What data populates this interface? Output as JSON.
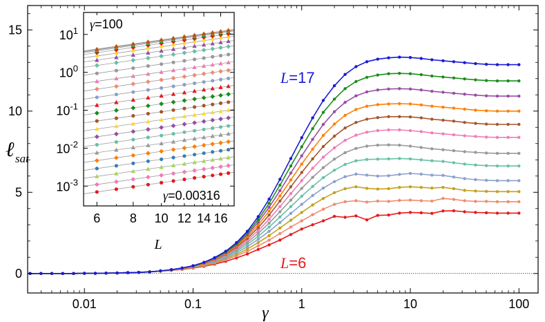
{
  "chart_data": [
    {
      "type": "line",
      "xscale": "log",
      "xlim": [
        0.003,
        150
      ],
      "ylim": [
        -1.2,
        16.5
      ],
      "xlabel": "γ",
      "ylabel": "ℓsat",
      "xticks": [
        {
          "value": 0.01,
          "label": "0.01"
        },
        {
          "value": 0.1,
          "label": "0.1"
        },
        {
          "value": 1,
          "label": "1"
        },
        {
          "value": 10,
          "label": "10"
        },
        {
          "value": 100,
          "label": "100"
        }
      ],
      "yticks": [
        {
          "value": 0,
          "label": "0"
        },
        {
          "value": 5,
          "label": "5"
        },
        {
          "value": 10,
          "label": "10"
        },
        {
          "value": 15,
          "label": "15"
        }
      ],
      "reference_line_y": 0,
      "annotations": [
        {
          "id": "top",
          "prefix": "L",
          "text": "=17",
          "color": "#1a1ad6"
        },
        {
          "id": "bottom",
          "prefix": "L",
          "text": "=6",
          "color": "#e41a1c"
        }
      ],
      "gamma": [
        0.00316,
        0.00398,
        0.00501,
        0.00631,
        0.00794,
        0.01,
        0.0126,
        0.0158,
        0.02,
        0.0251,
        0.0316,
        0.0398,
        0.0501,
        0.0631,
        0.0794,
        0.1,
        0.126,
        0.158,
        0.2,
        0.251,
        0.316,
        0.398,
        0.501,
        0.631,
        0.794,
        1.0,
        1.26,
        1.58,
        2.0,
        2.51,
        3.16,
        3.98,
        5.01,
        6.31,
        7.94,
        10.0,
        12.6,
        15.8,
        20.0,
        25.1,
        31.6,
        39.8,
        50.1,
        63.1,
        79.4,
        100.0
      ],
      "series": [
        {
          "name": "L=6",
          "color": "#e41a1c",
          "values": [
            0,
            0,
            0,
            0,
            0,
            0.01,
            0.01,
            0.02,
            0.03,
            0.05,
            0.07,
            0.1,
            0.14,
            0.19,
            0.25,
            0.33,
            0.44,
            0.58,
            0.75,
            0.96,
            1.2,
            1.48,
            1.76,
            2.06,
            2.4,
            2.74,
            3.0,
            3.24,
            3.52,
            3.46,
            3.55,
            3.3,
            3.58,
            3.6,
            3.72,
            3.76,
            3.74,
            3.7,
            3.85,
            3.86,
            3.8,
            3.76,
            3.74,
            3.72,
            3.72,
            3.72
          ]
        },
        {
          "name": "L=7",
          "color": "#f08c6e",
          "values": [
            0,
            0,
            0,
            0,
            0,
            0.01,
            0.01,
            0.02,
            0.03,
            0.05,
            0.07,
            0.1,
            0.15,
            0.2,
            0.27,
            0.36,
            0.48,
            0.64,
            0.84,
            1.08,
            1.37,
            1.7,
            2.06,
            2.46,
            2.86,
            3.24,
            3.62,
            3.96,
            4.26,
            4.42,
            4.48,
            4.4,
            4.46,
            4.44,
            4.5,
            4.52,
            4.48,
            4.46,
            4.62,
            4.56,
            4.48,
            4.44,
            4.44,
            4.42,
            4.42,
            4.42
          ]
        },
        {
          "name": "L=8",
          "color": "#c4a21c",
          "values": [
            0,
            0,
            0,
            0,
            0,
            0.01,
            0.01,
            0.02,
            0.03,
            0.05,
            0.07,
            0.1,
            0.15,
            0.21,
            0.28,
            0.38,
            0.51,
            0.69,
            0.91,
            1.18,
            1.51,
            1.9,
            2.33,
            2.8,
            3.28,
            3.76,
            4.22,
            4.62,
            4.98,
            5.22,
            5.34,
            5.24,
            5.2,
            5.22,
            5.3,
            5.34,
            5.3,
            5.26,
            5.3,
            5.22,
            5.12,
            5.08,
            5.06,
            5.04,
            5.04,
            5.04
          ]
        },
        {
          "name": "L=9",
          "color": "#8aa0cc",
          "values": [
            0,
            0,
            0,
            0,
            0,
            0.01,
            0.01,
            0.02,
            0.03,
            0.05,
            0.07,
            0.1,
            0.15,
            0.21,
            0.29,
            0.4,
            0.54,
            0.73,
            0.98,
            1.28,
            1.65,
            2.1,
            2.6,
            3.14,
            3.7,
            4.26,
            4.8,
            5.26,
            5.66,
            5.96,
            6.12,
            6.06,
            6.0,
            6.02,
            6.1,
            6.16,
            6.12,
            6.06,
            6.04,
            5.94,
            5.84,
            5.78,
            5.74,
            5.72,
            5.72,
            5.72
          ]
        },
        {
          "name": "L=10",
          "color": "#66c2a5",
          "values": [
            0,
            0,
            0,
            0,
            0,
            0.01,
            0.01,
            0.02,
            0.03,
            0.05,
            0.07,
            0.1,
            0.15,
            0.22,
            0.3,
            0.41,
            0.56,
            0.77,
            1.04,
            1.38,
            1.79,
            2.29,
            2.86,
            3.48,
            4.12,
            4.76,
            5.36,
            5.9,
            6.36,
            6.72,
            6.94,
            7.02,
            7.04,
            7.06,
            7.08,
            7.06,
            7.0,
            6.94,
            6.9,
            6.82,
            6.74,
            6.68,
            6.64,
            6.62,
            6.62,
            6.62
          ]
        },
        {
          "name": "L=11",
          "color": "#999999",
          "values": [
            0,
            0,
            0,
            0,
            0,
            0.01,
            0.01,
            0.02,
            0.03,
            0.05,
            0.07,
            0.1,
            0.15,
            0.22,
            0.31,
            0.42,
            0.58,
            0.8,
            1.09,
            1.46,
            1.92,
            2.47,
            3.1,
            3.8,
            4.52,
            5.24,
            5.92,
            6.52,
            7.04,
            7.44,
            7.7,
            7.84,
            7.9,
            7.92,
            7.9,
            7.84,
            7.76,
            7.68,
            7.62,
            7.56,
            7.5,
            7.46,
            7.42,
            7.4,
            7.4,
            7.4
          ]
        },
        {
          "name": "L=12",
          "color": "#f07cb8",
          "values": [
            0,
            0,
            0,
            0,
            0,
            0.01,
            0.01,
            0.02,
            0.03,
            0.05,
            0.07,
            0.1,
            0.15,
            0.22,
            0.31,
            0.43,
            0.6,
            0.83,
            1.14,
            1.54,
            2.04,
            2.64,
            3.34,
            4.12,
            4.92,
            5.72,
            6.48,
            7.16,
            7.74,
            8.2,
            8.52,
            8.7,
            8.8,
            8.84,
            8.84,
            8.8,
            8.74,
            8.66,
            8.6,
            8.54,
            8.48,
            8.44,
            8.4,
            8.38,
            8.38,
            8.38
          ]
        },
        {
          "name": "L=13",
          "color": "#a6562a",
          "values": [
            0,
            0,
            0,
            0,
            0,
            0.01,
            0.01,
            0.02,
            0.03,
            0.05,
            0.07,
            0.1,
            0.15,
            0.22,
            0.32,
            0.44,
            0.62,
            0.86,
            1.19,
            1.62,
            2.16,
            2.82,
            3.6,
            4.46,
            5.34,
            6.22,
            7.06,
            7.82,
            8.46,
            8.96,
            9.3,
            9.5,
            9.6,
            9.66,
            9.66,
            9.64,
            9.58,
            9.5,
            9.44,
            9.38,
            9.3,
            9.24,
            9.2,
            9.18,
            9.18,
            9.18
          ]
        },
        {
          "name": "L=14",
          "color": "#ff7f00",
          "values": [
            0,
            0,
            0,
            0,
            0,
            0.01,
            0.01,
            0.02,
            0.03,
            0.05,
            0.07,
            0.1,
            0.15,
            0.23,
            0.32,
            0.45,
            0.64,
            0.89,
            1.23,
            1.69,
            2.27,
            2.99,
            3.84,
            4.78,
            5.76,
            6.74,
            7.66,
            8.5,
            9.2,
            9.74,
            10.1,
            10.3,
            10.4,
            10.44,
            10.46,
            10.44,
            10.38,
            10.3,
            10.24,
            10.18,
            10.12,
            10.06,
            10.02,
            10.0,
            10.0,
            10.0
          ]
        },
        {
          "name": "L=15",
          "color": "#984ea3",
          "values": [
            0,
            0,
            0,
            0,
            0,
            0.01,
            0.01,
            0.02,
            0.03,
            0.05,
            0.07,
            0.1,
            0.16,
            0.23,
            0.33,
            0.46,
            0.66,
            0.92,
            1.28,
            1.76,
            2.38,
            3.16,
            4.08,
            5.1,
            6.18,
            7.24,
            8.26,
            9.18,
            9.96,
            10.54,
            10.94,
            11.18,
            11.3,
            11.36,
            11.38,
            11.36,
            11.3,
            11.22,
            11.16,
            11.1,
            11.04,
            10.98,
            10.94,
            10.92,
            10.92,
            10.92
          ]
        },
        {
          "name": "L=16",
          "color": "#1c8c1c",
          "values": [
            0,
            0,
            0,
            0,
            0,
            0.01,
            0.01,
            0.02,
            0.03,
            0.05,
            0.07,
            0.1,
            0.16,
            0.23,
            0.33,
            0.47,
            0.67,
            0.95,
            1.32,
            1.83,
            2.49,
            3.32,
            4.32,
            5.44,
            6.62,
            7.8,
            8.92,
            9.92,
            10.74,
            11.38,
            11.82,
            12.08,
            12.22,
            12.3,
            12.32,
            12.3,
            12.24,
            12.16,
            12.1,
            12.04,
            11.98,
            11.92,
            11.88,
            11.86,
            11.86,
            11.86
          ]
        },
        {
          "name": "L=17",
          "color": "#1a1ad6",
          "values": [
            0,
            0,
            0,
            0,
            0,
            0.01,
            0.01,
            0.02,
            0.03,
            0.05,
            0.07,
            0.1,
            0.16,
            0.24,
            0.34,
            0.48,
            0.69,
            0.98,
            1.37,
            1.9,
            2.6,
            3.5,
            4.58,
            5.8,
            7.08,
            8.36,
            9.58,
            10.66,
            11.56,
            12.26,
            12.74,
            13.04,
            13.2,
            13.28,
            13.32,
            13.3,
            13.24,
            13.16,
            13.1,
            13.04,
            12.98,
            12.92,
            12.88,
            12.86,
            12.86,
            12.86
          ]
        }
      ]
    },
    {
      "type": "scatter",
      "inset": true,
      "xscale": "log",
      "yscale": "log",
      "xlim": [
        5.4,
        17.8
      ],
      "ylim": [
        0.0003,
        38
      ],
      "xlabel": "L",
      "xticks": [
        {
          "value": 6,
          "label": "6"
        },
        {
          "value": 8,
          "label": "8"
        },
        {
          "value": 10,
          "label": "10"
        },
        {
          "value": 12,
          "label": "12"
        },
        {
          "value": 14,
          "label": "14"
        },
        {
          "value": 16,
          "label": "16"
        }
      ],
      "yticks": [
        {
          "value": 0.001,
          "base": "10",
          "exp": "-3"
        },
        {
          "value": 0.01,
          "base": "10",
          "exp": "-2"
        },
        {
          "value": 0.1,
          "base": "10",
          "exp": "-1"
        },
        {
          "value": 1,
          "base": "10",
          "exp": "0"
        },
        {
          "value": 10,
          "base": "10",
          "exp": "1"
        }
      ],
      "labels": {
        "top": {
          "prefix": "γ",
          "text": "=100"
        },
        "bottom": {
          "prefix": "γ",
          "text": "=0.00316"
        }
      },
      "L": [
        6,
        7,
        8,
        9,
        10,
        11,
        12,
        13,
        14,
        15,
        16,
        17
      ],
      "fit_lines": "gray power-law fits through each γ series",
      "series_gamma": [
        0.00316,
        0.00501,
        0.00794,
        0.0126,
        0.02,
        0.0316,
        0.0501,
        0.0794,
        0.126,
        0.2,
        0.316,
        0.501,
        0.794,
        1.26,
        2.0,
        3.16,
        5.01,
        7.94,
        12.6,
        20.0,
        31.6,
        50.1,
        79.4,
        100.0
      ],
      "series_L6_values": [
        0.0007,
        0.0011,
        0.0018,
        0.0029,
        0.0047,
        0.0076,
        0.0123,
        0.02,
        0.032,
        0.052,
        0.084,
        0.137,
        0.22,
        0.36,
        0.58,
        0.94,
        1.52,
        2.1,
        2.7,
        3.3,
        3.7,
        3.9,
        4.0,
        4.1
      ],
      "series_slope": 1.1,
      "series_colors": [
        "#e41a1c",
        "#f07cb8",
        "#a6d854",
        "#377eb8",
        "#ff7f00",
        "#999999",
        "#66c2a5",
        "#984ea3",
        "#ffd92f",
        "#a6562a",
        "#1c8c1c",
        "#e41a1c",
        "#8aa0cc",
        "#f08c6e",
        "#f07cb8",
        "#999999",
        "#66c2a5",
        "#984ea3",
        "#ffd92f",
        "#e41a1c",
        "#1c8c1c",
        "#8aa0cc",
        "#ff7f00",
        "#a6562a"
      ]
    }
  ]
}
